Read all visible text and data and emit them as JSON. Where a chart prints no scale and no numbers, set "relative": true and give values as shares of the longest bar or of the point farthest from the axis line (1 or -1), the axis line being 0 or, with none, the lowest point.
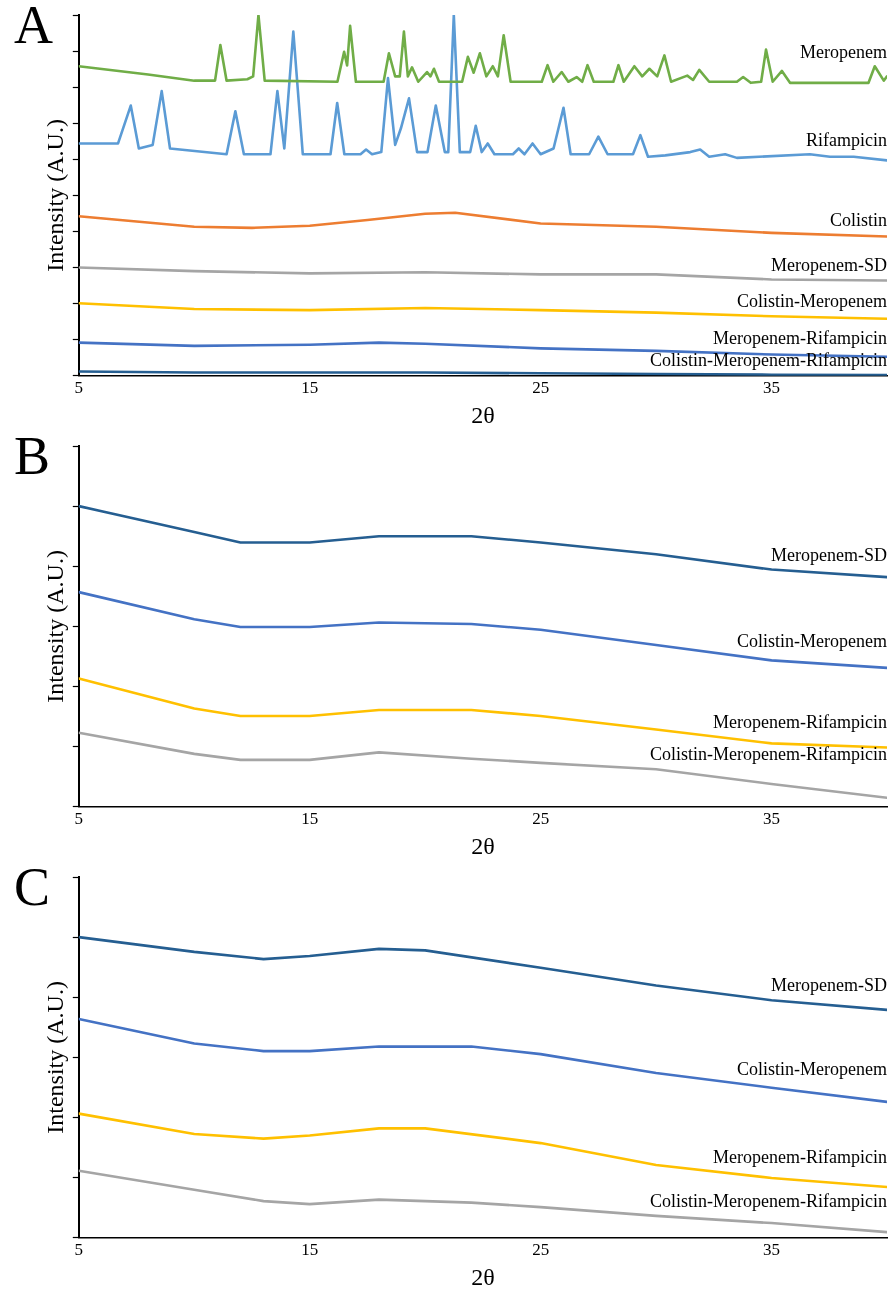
{
  "chart_data": [
    {
      "type": "line",
      "title": "A",
      "xlabel": "2θ",
      "ylabel": "Intensity (A.U.)",
      "xlim": [
        5,
        40
      ],
      "xticks": [
        5,
        15,
        25,
        35
      ],
      "relative": true,
      "series": [
        {
          "name": "Meropenem",
          "color": "#70ad47",
          "x": [
            5,
            8,
            10,
            10.9,
            11.13,
            11.4,
            12.3,
            12.55,
            12.78,
            13.05,
            16.2,
            16.49,
            16.62,
            16.75,
            17.0,
            18.2,
            18.43,
            18.7,
            18.9,
            19.08,
            19.25,
            19.43,
            19.7,
            20.08,
            20.23,
            20.38,
            20.6,
            21.6,
            21.85,
            22.1,
            22.37,
            22.65,
            22.93,
            23.15,
            23.4,
            23.7,
            25.05,
            25.3,
            25.55,
            25.91,
            26.2,
            26.56,
            26.8,
            27.03,
            27.3,
            28.15,
            28.37,
            28.6,
            29.06,
            29.4,
            29.71,
            30.05,
            30.36,
            30.65,
            31.35,
            31.6,
            31.87,
            32.3,
            33.5,
            33.77,
            34.1,
            34.55,
            34.76,
            35.05,
            35.45,
            35.8,
            39.2,
            39.47,
            39.86,
            40
          ],
          "values": [
            0.858,
            0.835,
            0.818,
            0.818,
            0.917,
            0.818,
            0.822,
            0.83,
            1.0,
            0.818,
            0.815,
            0.898,
            0.86,
            0.97,
            0.815,
            0.815,
            0.894,
            0.83,
            0.83,
            0.954,
            0.83,
            0.855,
            0.815,
            0.842,
            0.83,
            0.851,
            0.815,
            0.815,
            0.884,
            0.84,
            0.894,
            0.83,
            0.858,
            0.83,
            0.944,
            0.815,
            0.815,
            0.861,
            0.815,
            0.842,
            0.815,
            0.828,
            0.815,
            0.861,
            0.815,
            0.815,
            0.861,
            0.815,
            0.858,
            0.83,
            0.851,
            0.83,
            0.888,
            0.815,
            0.832,
            0.82,
            0.848,
            0.815,
            0.815,
            0.828,
            0.812,
            0.815,
            0.904,
            0.815,
            0.845,
            0.812,
            0.812,
            0.858,
            0.818,
            0.83
          ]
        },
        {
          "name": "Rifampicin",
          "color": "#5b9bd5",
          "x": [
            5,
            6.7,
            7.25,
            7.6,
            8.2,
            8.59,
            8.95,
            11.4,
            11.78,
            12.15,
            13.3,
            13.6,
            13.9,
            14.29,
            14.7,
            15.9,
            16.19,
            16.5,
            17.2,
            17.44,
            17.7,
            18.1,
            18.39,
            18.7,
            18.95,
            19.3,
            19.65,
            20.1,
            20.46,
            20.85,
            21.0,
            21.24,
            21.5,
            21.95,
            22.19,
            22.45,
            22.71,
            23.0,
            23.8,
            24.05,
            24.3,
            24.65,
            25.0,
            25.56,
            25.99,
            26.3,
            27.1,
            27.5,
            27.9,
            29.0,
            29.32,
            29.65,
            30.4,
            31.48,
            31.91,
            32.3,
            32.99,
            33.5,
            36.66,
            37.53,
            38.56,
            40
          ],
          "values": [
            0.644,
            0.644,
            0.749,
            0.63,
            0.64,
            0.789,
            0.63,
            0.614,
            0.733,
            0.614,
            0.614,
            0.789,
            0.63,
            0.954,
            0.614,
            0.614,
            0.756,
            0.614,
            0.614,
            0.627,
            0.614,
            0.62,
            0.825,
            0.64,
            0.686,
            0.769,
            0.62,
            0.62,
            0.749,
            0.62,
            0.62,
            1.0,
            0.62,
            0.62,
            0.693,
            0.62,
            0.644,
            0.614,
            0.614,
            0.63,
            0.614,
            0.644,
            0.614,
            0.63,
            0.743,
            0.614,
            0.614,
            0.663,
            0.614,
            0.614,
            0.667,
            0.607,
            0.611,
            0.62,
            0.627,
            0.607,
            0.614,
            0.604,
            0.614,
            0.607,
            0.607,
            0.597
          ]
        },
        {
          "name": "Colistin",
          "color": "#ed7d31",
          "x": [
            5,
            10,
            12.5,
            15,
            17.5,
            20,
            21.3,
            25,
            30,
            35,
            40
          ],
          "values": [
            0.442,
            0.413,
            0.41,
            0.416,
            0.432,
            0.449,
            0.452,
            0.422,
            0.413,
            0.396,
            0.386
          ]
        },
        {
          "name": "Meropenem-SD",
          "color": "#a5a5a5",
          "x": [
            5,
            10,
            15,
            20,
            25,
            30,
            35,
            40
          ],
          "values": [
            0.3,
            0.29,
            0.284,
            0.287,
            0.281,
            0.281,
            0.267,
            0.264
          ]
        },
        {
          "name": "Colistin-Meropenem",
          "color": "#ffc000",
          "x": [
            5,
            10,
            15,
            20,
            25,
            30,
            35,
            40
          ],
          "values": [
            0.201,
            0.185,
            0.182,
            0.188,
            0.182,
            0.175,
            0.165,
            0.158
          ]
        },
        {
          "name": "Meropenem-Rifampicin",
          "color": "#4472c4",
          "x": [
            5,
            10,
            15,
            18,
            20,
            25,
            30,
            35,
            40
          ],
          "values": [
            0.092,
            0.083,
            0.086,
            0.092,
            0.089,
            0.076,
            0.069,
            0.059,
            0.053
          ]
        },
        {
          "name": "Colistin-Meropenem-Rifampicin",
          "color": "#255e91",
          "x": [
            5,
            10,
            15,
            20,
            25,
            30,
            35,
            40
          ],
          "values": [
            0.012,
            0.009,
            0.009,
            0.009,
            0.007,
            0.005,
            0.003,
            0.002
          ]
        }
      ]
    },
    {
      "type": "line",
      "title": "B",
      "xlabel": "2θ",
      "ylabel": "Intensity (A.U.)",
      "xlim": [
        5,
        40
      ],
      "xticks": [
        5,
        15,
        25,
        35
      ],
      "relative": true,
      "series": [
        {
          "name": "Meropenem-SD",
          "color": "#255e91",
          "x": [
            5,
            10,
            12,
            15,
            18,
            22,
            25,
            30,
            35,
            40
          ],
          "values": [
            1,
            0.914,
            0.879,
            0.879,
            0.9,
            0.9,
            0.879,
            0.84,
            0.789,
            0.764
          ]
        },
        {
          "name": "Colistin-Meropenem",
          "color": "#4472c4",
          "x": [
            5,
            10,
            12,
            15,
            18,
            22,
            25,
            30,
            35,
            40
          ],
          "values": [
            0.714,
            0.624,
            0.598,
            0.598,
            0.613,
            0.608,
            0.589,
            0.538,
            0.487,
            0.462
          ]
        },
        {
          "name": "Meropenem-Rifampicin",
          "color": "#ffc000",
          "x": [
            5,
            10,
            12,
            15,
            18,
            22,
            25,
            30,
            35,
            40
          ],
          "values": [
            0.427,
            0.327,
            0.302,
            0.302,
            0.322,
            0.322,
            0.302,
            0.257,
            0.211,
            0.197
          ]
        },
        {
          "name": "Colistin-Meropenem-Rifampicin",
          "color": "#a5a5a5",
          "x": [
            5,
            10,
            12,
            15,
            18,
            22,
            25,
            30,
            35,
            40
          ],
          "values": [
            0.246,
            0.176,
            0.156,
            0.156,
            0.181,
            0.16,
            0.146,
            0.125,
            0.076,
            0.03
          ]
        }
      ]
    },
    {
      "type": "line",
      "title": "C",
      "xlabel": "2θ",
      "ylabel": "Intensity (A.U.)",
      "xlim": [
        5,
        40
      ],
      "xticks": [
        5,
        15,
        25,
        35
      ],
      "relative": true,
      "series": [
        {
          "name": "Meropenem-SD",
          "color": "#255e91",
          "x": [
            5,
            10,
            13,
            15,
            18,
            20,
            25,
            30,
            35,
            40
          ],
          "values": [
            1,
            0.951,
            0.927,
            0.937,
            0.961,
            0.956,
            0.898,
            0.839,
            0.79,
            0.758
          ]
        },
        {
          "name": "Colistin-Meropenem",
          "color": "#4472c4",
          "x": [
            5,
            10,
            13,
            15,
            18,
            22,
            25,
            30,
            35,
            40
          ],
          "values": [
            0.728,
            0.646,
            0.621,
            0.621,
            0.636,
            0.636,
            0.611,
            0.548,
            0.499,
            0.452
          ]
        },
        {
          "name": "Meropenem-Rifampicin",
          "color": "#ffc000",
          "x": [
            5,
            10,
            13,
            15,
            18,
            20,
            25,
            30,
            35,
            40
          ],
          "values": [
            0.413,
            0.345,
            0.33,
            0.34,
            0.364,
            0.364,
            0.315,
            0.242,
            0.199,
            0.169
          ]
        },
        {
          "name": "Colistin-Meropenem-Rifampicin",
          "color": "#a5a5a5",
          "x": [
            5,
            10,
            13,
            15,
            18,
            22,
            25,
            30,
            35,
            40
          ],
          "values": [
            0.223,
            0.16,
            0.122,
            0.112,
            0.127,
            0.117,
            0.102,
            0.073,
            0.049,
            0.019
          ]
        }
      ]
    }
  ]
}
